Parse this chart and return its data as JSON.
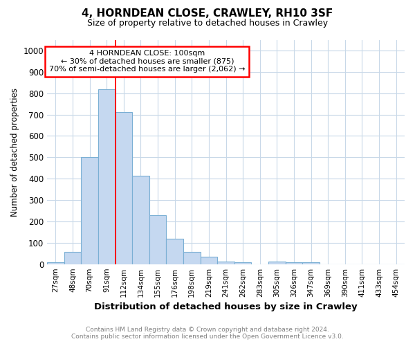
{
  "title": "4, HORNDEAN CLOSE, CRAWLEY, RH10 3SF",
  "subtitle": "Size of property relative to detached houses in Crawley",
  "xlabel": "Distribution of detached houses by size in Crawley",
  "ylabel": "Number of detached properties",
  "bins": [
    "27sqm",
    "48sqm",
    "70sqm",
    "91sqm",
    "112sqm",
    "134sqm",
    "155sqm",
    "176sqm",
    "198sqm",
    "219sqm",
    "241sqm",
    "262sqm",
    "283sqm",
    "305sqm",
    "326sqm",
    "347sqm",
    "369sqm",
    "390sqm",
    "411sqm",
    "433sqm",
    "454sqm"
  ],
  "values": [
    8,
    57,
    500,
    820,
    710,
    415,
    230,
    118,
    57,
    33,
    13,
    10,
    0,
    13,
    8,
    8,
    0,
    0,
    0,
    0,
    0
  ],
  "bar_color": "#c5d8f0",
  "bar_edge_color": "#7aafd4",
  "bar_width": 1.0,
  "red_line_x": 3.5,
  "annotation_text": "4 HORNDEAN CLOSE: 100sqm\n← 30% of detached houses are smaller (875)\n70% of semi-detached houses are larger (2,062) →",
  "annotation_box_color": "white",
  "annotation_box_edge_color": "red",
  "ylim": [
    0,
    1050
  ],
  "yticks": [
    0,
    100,
    200,
    300,
    400,
    500,
    600,
    700,
    800,
    900,
    1000
  ],
  "footer_line1": "Contains HM Land Registry data © Crown copyright and database right 2024.",
  "footer_line2": "Contains public sector information licensed under the Open Government Licence v3.0.",
  "bg_color": "#ffffff",
  "plot_bg_color": "#ffffff",
  "grid_color": "#c8d8e8"
}
